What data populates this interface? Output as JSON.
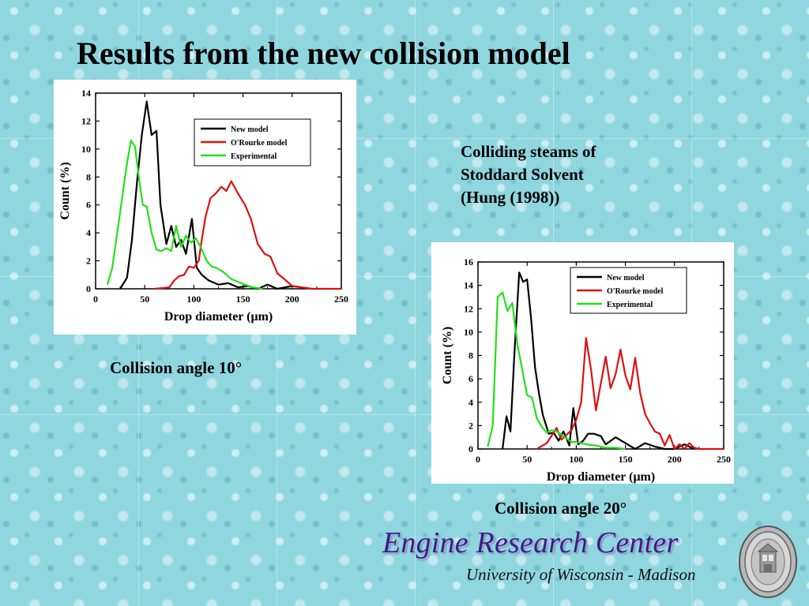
{
  "slide": {
    "title": "Results from the new collision model",
    "note_lines": [
      "Colliding steams of",
      "Stoddard Solvent",
      "(Hung (1998))"
    ],
    "caption_left": "Collision angle 10°",
    "caption_right": "Collision angle 20°",
    "brand": "Engine Research Center",
    "brand_sub": "University of Wisconsin - Madison",
    "brand_color": "#3a1f86",
    "logo_icon": "university-seal-icon"
  },
  "chart_data": [
    {
      "type": "line",
      "xlabel": "Drop diameter (μm)",
      "ylabel": "Count (%)",
      "xlim": [
        0,
        250
      ],
      "ylim": [
        0,
        14
      ],
      "xticks": [
        0,
        50,
        100,
        150,
        200,
        250
      ],
      "yticks": [
        0,
        2,
        4,
        6,
        8,
        10,
        12,
        14
      ],
      "grid": false,
      "legend_position": "top-right",
      "series": [
        {
          "name": "New model",
          "color": "#000000",
          "x": [
            25,
            32,
            37,
            42,
            47,
            52,
            57,
            62,
            66,
            72,
            77,
            82,
            87,
            92,
            98,
            103,
            108,
            115,
            125,
            135,
            145,
            155,
            165,
            175,
            185,
            200,
            220
          ],
          "y": [
            0,
            0.8,
            3.5,
            7.5,
            11,
            13.4,
            11,
            11.3,
            6,
            3.2,
            4.5,
            3.0,
            3.5,
            2.5,
            5,
            1.5,
            1.0,
            0.6,
            0.3,
            0.4,
            0.1,
            0.2,
            0.0,
            0.3,
            0.0,
            0.2,
            0
          ]
        },
        {
          "name": "O'Rourke model",
          "color": "#dd1010",
          "x": [
            60,
            75,
            80,
            85,
            90,
            95,
            100,
            105,
            108,
            112,
            117,
            122,
            128,
            133,
            138,
            145,
            152,
            158,
            165,
            172,
            178,
            185,
            192,
            200,
            210,
            220,
            235,
            250
          ],
          "y": [
            0,
            0.1,
            0.6,
            0.9,
            1.0,
            1.6,
            1.5,
            2.0,
            3.5,
            5.2,
            6.5,
            6.8,
            7.3,
            7.0,
            7.7,
            6.8,
            6.0,
            5.0,
            3.2,
            2.5,
            2.3,
            1.1,
            0.7,
            0.2,
            0.1,
            0.0,
            0.0,
            0
          ]
        },
        {
          "name": "Experimental",
          "color": "#22e01a",
          "x": [
            12,
            17,
            22,
            28,
            32,
            36,
            40,
            44,
            48,
            52,
            57,
            62,
            67,
            72,
            77,
            82,
            87,
            92,
            97,
            102,
            107,
            113,
            118,
            123,
            130,
            138,
            145,
            152,
            160,
            170
          ],
          "y": [
            0.3,
            1.5,
            4.0,
            7.0,
            9.0,
            10.6,
            10.2,
            8.0,
            6.0,
            5.9,
            4.0,
            2.8,
            2.7,
            2.9,
            2.7,
            4.5,
            3.0,
            3.8,
            3.3,
            3.6,
            3.0,
            2.0,
            1.6,
            1.5,
            1.2,
            0.7,
            0.5,
            0.3,
            0.1,
            0
          ]
        }
      ]
    },
    {
      "type": "line",
      "xlabel": "Drop diameter (μm)",
      "ylabel": "Count (%)",
      "xlim": [
        0,
        250
      ],
      "ylim": [
        0,
        16
      ],
      "xticks": [
        0,
        50,
        100,
        150,
        200,
        250
      ],
      "yticks": [
        0,
        2,
        4,
        6,
        8,
        10,
        12,
        14,
        16
      ],
      "grid": false,
      "legend_position": "top-right",
      "series": [
        {
          "name": "New model",
          "color": "#000000",
          "x": [
            25,
            29,
            33,
            37,
            42,
            46,
            50,
            54,
            58,
            62,
            66,
            72,
            77,
            82,
            87,
            93,
            97,
            102,
            107,
            112,
            118,
            125,
            130,
            140,
            150,
            160,
            170,
            180,
            190,
            200,
            210,
            220
          ],
          "y": [
            0,
            2.8,
            1.5,
            8.0,
            15.1,
            14.3,
            14.5,
            11.2,
            7.0,
            4.8,
            2.9,
            1.3,
            1.4,
            0.7,
            1.5,
            0.3,
            3.5,
            0.4,
            0.7,
            1.3,
            1.3,
            1.1,
            0.4,
            1.0,
            0.5,
            0.0,
            0.5,
            0.2,
            0.0,
            0.0,
            0.4,
            0
          ]
        },
        {
          "name": "O'Rourke model",
          "color": "#dd1010",
          "x": [
            60,
            70,
            80,
            85,
            90,
            95,
            100,
            105,
            110,
            115,
            120,
            125,
            130,
            135,
            140,
            145,
            150,
            155,
            160,
            165,
            170,
            175,
            180,
            185,
            190,
            195,
            200,
            205,
            210,
            215,
            220,
            225,
            230,
            250
          ],
          "y": [
            0,
            0.5,
            1.8,
            0.8,
            1.2,
            1.6,
            2.5,
            4.0,
            9.5,
            6.8,
            3.3,
            5.6,
            7.9,
            5.2,
            6.4,
            8.5,
            6.3,
            5.1,
            7.8,
            4.8,
            3.0,
            2.2,
            1.5,
            1.3,
            0.3,
            1.2,
            0.0,
            0.4,
            0.0,
            0.5,
            0.1,
            0.0,
            0.0,
            0
          ]
        },
        {
          "name": "Experimental",
          "color": "#22e01a",
          "x": [
            10,
            15,
            20,
            25,
            30,
            35,
            40,
            45,
            50,
            55,
            60,
            65,
            70,
            75,
            80,
            85,
            90,
            95,
            100,
            110,
            120,
            130,
            140,
            150
          ],
          "y": [
            0.2,
            2.0,
            13.0,
            13.4,
            11.8,
            12.5,
            9.0,
            6.8,
            4.6,
            4.4,
            2.6,
            1.9,
            1.4,
            1.6,
            1.5,
            1.2,
            0.9,
            0.6,
            0.6,
            0.4,
            0.3,
            0.1,
            0.1,
            0
          ]
        }
      ]
    }
  ]
}
